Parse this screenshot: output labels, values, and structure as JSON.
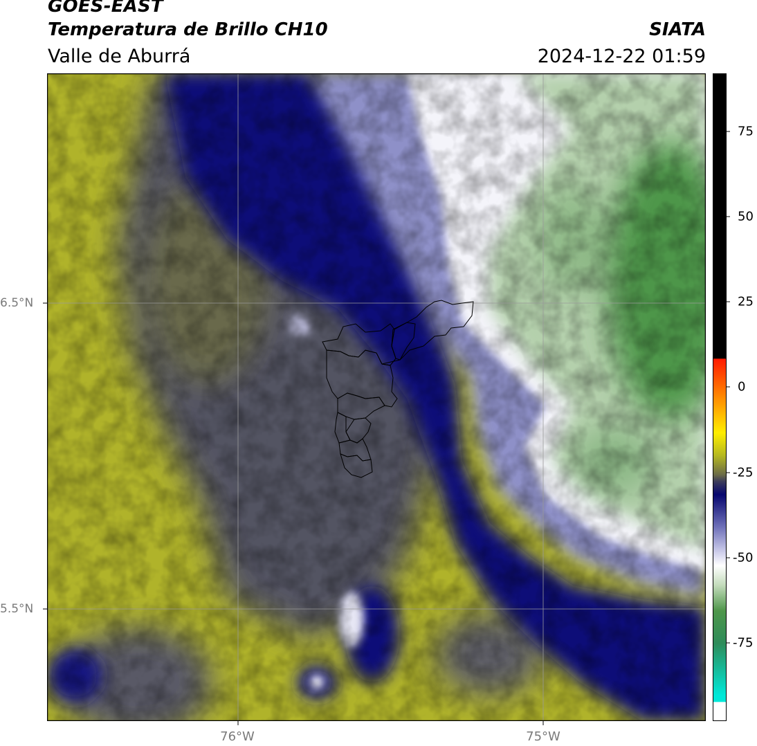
{
  "header": {
    "satellite": "GOES-EAST",
    "product": "Temperatura de Brillo CH10",
    "region": "Valle de Aburrá",
    "agency": "SIATA",
    "datetime": "2024-12-22 01:59"
  },
  "map": {
    "lat_labels": [
      "6.5°N",
      "5.5°N"
    ],
    "lon_labels": [
      "76°W",
      "75°W"
    ]
  },
  "colorbar": {
    "ticks": [
      "75",
      "50",
      "25",
      "0",
      "-25",
      "-50",
      "-75"
    ],
    "colors": {
      "top_black": "#000000",
      "red": "#ff2200",
      "orange": "#ff8800",
      "yellow": "#ffee00",
      "olive": "#b5b820",
      "dark_gray": "#3c3c5a",
      "navy": "#0a0a78",
      "lavender": "#a8aad8",
      "white": "#ffffff",
      "light_green": "#b8d4b0",
      "green": "#3c8c3c",
      "teal": "#00e0d0"
    }
  }
}
